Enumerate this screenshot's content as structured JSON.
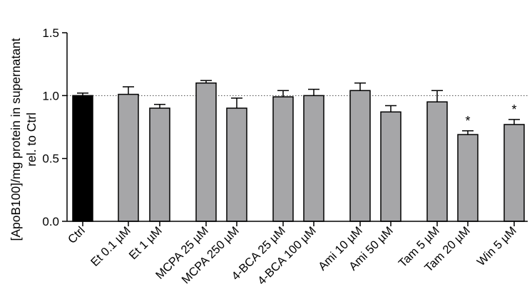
{
  "chart_data": {
    "type": "bar",
    "ylabel_line1": "[ApoB100]/mg protein in supernatant",
    "ylabel_line2": "rel. to Ctrl",
    "ylim": [
      0,
      1.5
    ],
    "yticks": [
      "0.0",
      "0.5",
      "1.0",
      "1.5"
    ],
    "reference_line": 1.0,
    "categories": [
      "Ctrl",
      "Et 0.1 µM",
      "Et 1 µM",
      "MCPA 25 µM",
      "MCPA 250 µM",
      "4-BCA 25 µM",
      "4-BCA 100 µM",
      "Ami 10 µM",
      "Ami 50 µM",
      "Tam 5 µM",
      "Tam 20 µM",
      "Win 5 µM"
    ],
    "values": [
      1.0,
      1.01,
      0.9,
      1.1,
      0.9,
      0.99,
      1.0,
      1.04,
      0.87,
      0.95,
      0.69,
      0.77
    ],
    "errors": [
      0.02,
      0.06,
      0.03,
      0.02,
      0.08,
      0.05,
      0.05,
      0.06,
      0.05,
      0.09,
      0.03,
      0.04
    ],
    "significance": [
      "",
      "",
      "",
      "",
      "",
      "",
      "",
      "",
      "",
      "",
      "*",
      "*"
    ],
    "colors": {
      "control": "#000000",
      "treatment": "#a6a6a8",
      "edge": "#000000"
    }
  }
}
